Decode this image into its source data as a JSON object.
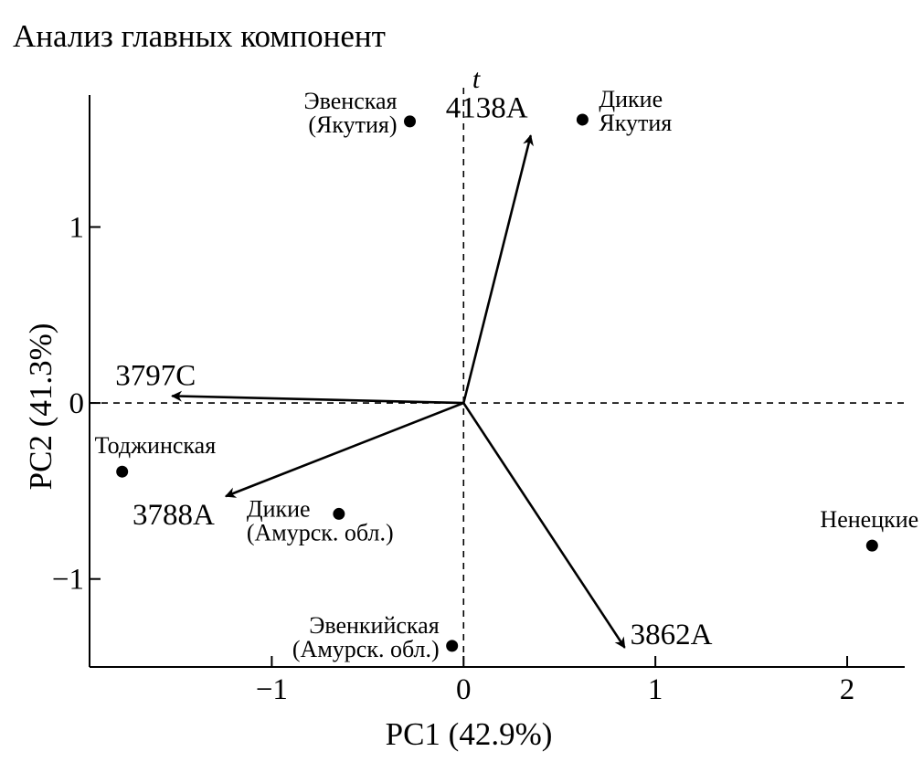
{
  "title": "Анализ главных компонент",
  "chart_data": {
    "type": "scatter",
    "title": "Анализ главных компонент",
    "xlabel": "PC1 (42.9%)",
    "ylabel": "PC2 (41.3%)",
    "xlim": [
      -1.95,
      2.3
    ],
    "ylim": [
      -1.5,
      1.75
    ],
    "xticks": [
      -1,
      0,
      1,
      2
    ],
    "xtick_labels": [
      "−1",
      "0",
      "1",
      "2"
    ],
    "yticks": [
      -1,
      0,
      1
    ],
    "ytick_labels": [
      "−1",
      "0",
      "1"
    ],
    "grid": false,
    "reference_lines": {
      "x": 0,
      "y": 0,
      "style": "dashed"
    },
    "axis_top_label": "t",
    "points": [
      {
        "label": [
          "Эвенская",
          "(Якутия)"
        ],
        "x": -0.28,
        "y": 1.6,
        "label_pos": "left"
      },
      {
        "label": [
          "Дикие",
          "Якутия"
        ],
        "x": 0.62,
        "y": 1.61,
        "label_pos": "right"
      },
      {
        "label": [
          "Тоджинская"
        ],
        "x": -1.78,
        "y": -0.39,
        "label_pos": "above"
      },
      {
        "label": [
          "Дикие",
          "(Амурск. обл.)"
        ],
        "x": -0.65,
        "y": -0.63,
        "label_pos": "left-below"
      },
      {
        "label": [
          "Эвенкийская",
          "(Амурск. обл.)"
        ],
        "x": -0.06,
        "y": -1.38,
        "label_pos": "left"
      },
      {
        "label": [
          "Ненецкие"
        ],
        "x": 2.13,
        "y": -0.81,
        "label_pos": "above"
      }
    ],
    "vectors": [
      {
        "label": "4138A",
        "x": 0.35,
        "y": 1.52
      },
      {
        "label": "3797C",
        "x": -1.52,
        "y": 0.04
      },
      {
        "label": "3788A",
        "x": -1.24,
        "y": -0.53
      },
      {
        "label": "3862A",
        "x": 0.84,
        "y": -1.39
      }
    ]
  }
}
